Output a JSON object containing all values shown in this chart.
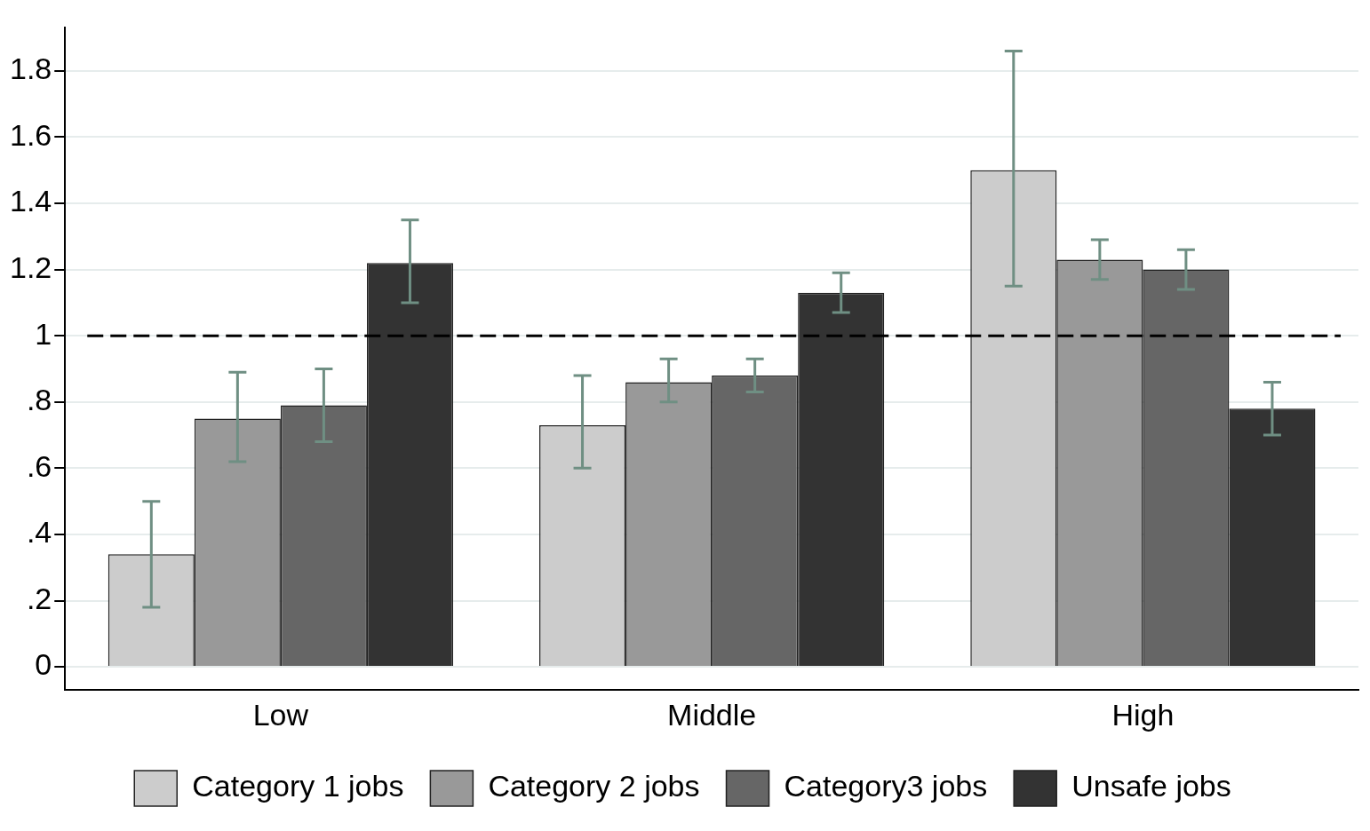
{
  "chart_data": {
    "type": "bar",
    "categories": [
      "Low",
      "Middle",
      "High"
    ],
    "series": [
      {
        "name": "Category 1 jobs",
        "color": "#cccccc",
        "values": [
          0.34,
          0.73,
          1.5
        ],
        "errors": [
          [
            0.18,
            0.5
          ],
          [
            0.6,
            0.88
          ],
          [
            1.15,
            1.86
          ]
        ]
      },
      {
        "name": "Category 2 jobs",
        "color": "#999999",
        "values": [
          0.75,
          0.86,
          1.23
        ],
        "errors": [
          [
            0.62,
            0.89
          ],
          [
            0.8,
            0.93
          ],
          [
            1.17,
            1.29
          ]
        ]
      },
      {
        "name": "Category3 jobs",
        "color": "#666666",
        "values": [
          0.79,
          0.88,
          1.2
        ],
        "errors": [
          [
            0.68,
            0.9
          ],
          [
            0.83,
            0.93
          ],
          [
            1.14,
            1.26
          ]
        ]
      },
      {
        "name": "Unsafe jobs",
        "color": "#333333",
        "values": [
          1.22,
          1.13,
          0.78
        ],
        "errors": [
          [
            1.1,
            1.35
          ],
          [
            1.07,
            1.19
          ],
          [
            0.7,
            0.86
          ]
        ]
      }
    ],
    "ylim": [
      -0.07,
      1.93
    ],
    "yticks": [
      0,
      {
        "value": 0.2,
        "label": ".2"
      },
      {
        "value": 0.4,
        "label": ".4"
      },
      {
        "value": 0.6,
        "label": ".6"
      },
      {
        "value": 0.8,
        "label": ".8"
      },
      1,
      1.2,
      1.4,
      1.6,
      1.8
    ],
    "grid": "y",
    "legend": "bottom",
    "ref_lines": [
      {
        "axis": "y",
        "value": 1,
        "color": "#000000",
        "line_style": "dashed"
      }
    ]
  }
}
